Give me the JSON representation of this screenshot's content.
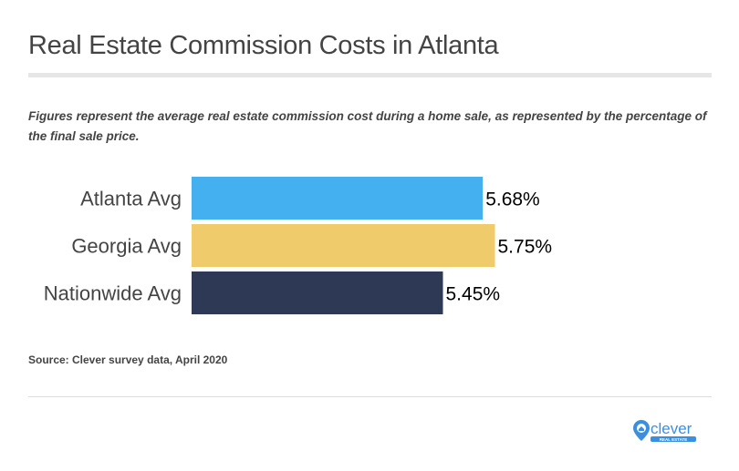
{
  "title": "Real Estate Commission Costs in Atlanta",
  "subtitle": "Figures represent the average real estate commission cost during a home sale, as represented by the percentage of the final sale price.",
  "source": "Source: Clever survey data, April 2020",
  "logo": {
    "name": "clever",
    "tagline": "REAL ESTATE",
    "color": "#3b8fe0"
  },
  "chart_data": {
    "type": "bar",
    "orientation": "horizontal",
    "categories": [
      "Atlanta Avg",
      "Georgia Avg",
      "Nationwide Avg"
    ],
    "values": [
      5.68,
      5.75,
      5.45
    ],
    "data_labels": [
      "5.68%",
      "5.75%",
      "5.45%"
    ],
    "colors": [
      "#45b0ef",
      "#efcb6b",
      "#2e3a55"
    ],
    "xlim": [
      4,
      6
    ],
    "grid": false
  }
}
